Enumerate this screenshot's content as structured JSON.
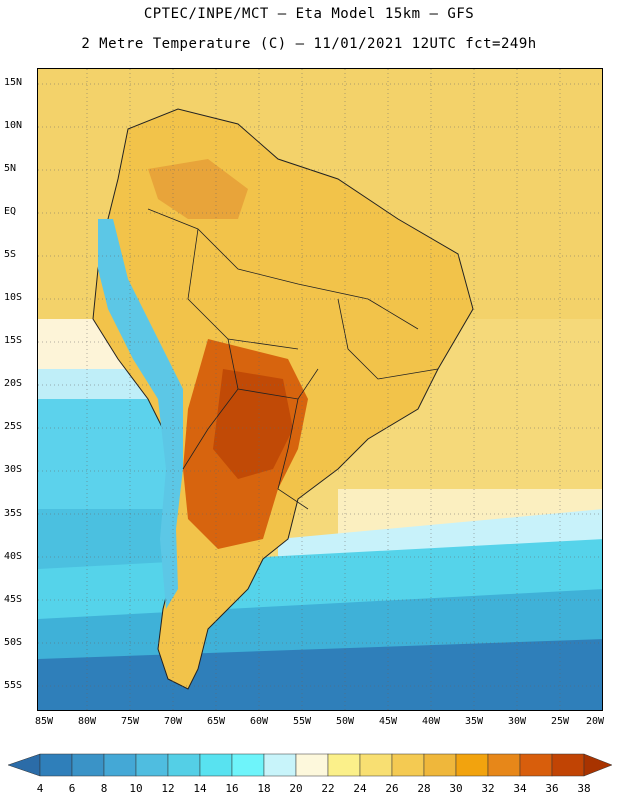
{
  "header": {
    "line1": "CPTEC/INPE/MCT –  Eta Model 15km – GFS",
    "line2": "2 Metre Temperature (C) – 11/01/2021 12UTC fct=249h"
  },
  "axes": {
    "lat_labels": [
      "15N",
      "10N",
      "5N",
      "EQ",
      "5S",
      "10S",
      "15S",
      "20S",
      "25S",
      "30S",
      "35S",
      "40S",
      "45S",
      "50S",
      "55S"
    ],
    "lon_labels": [
      "85W",
      "80W",
      "75W",
      "70W",
      "65W",
      "60W",
      "55W",
      "50W",
      "45W",
      "40W",
      "35W",
      "30W",
      "25W",
      "20W"
    ]
  },
  "colorbar": {
    "labels": [
      "4",
      "6",
      "8",
      "10",
      "12",
      "14",
      "16",
      "18",
      "20",
      "22",
      "24",
      "26",
      "28",
      "30",
      "32",
      "34",
      "36",
      "38"
    ],
    "colors": [
      "#2b6ca8",
      "#2f7fba",
      "#3a93c7",
      "#44a8d6",
      "#4fbde0",
      "#54cfe6",
      "#58e2f0",
      "#6ef4fa",
      "#c8f4fa",
      "#fdf8dc",
      "#fbf08a",
      "#f8df72",
      "#f4ca52",
      "#efb73b",
      "#f2a30e",
      "#e78719",
      "#d85e0c",
      "#c14404",
      "#a83300"
    ]
  }
}
